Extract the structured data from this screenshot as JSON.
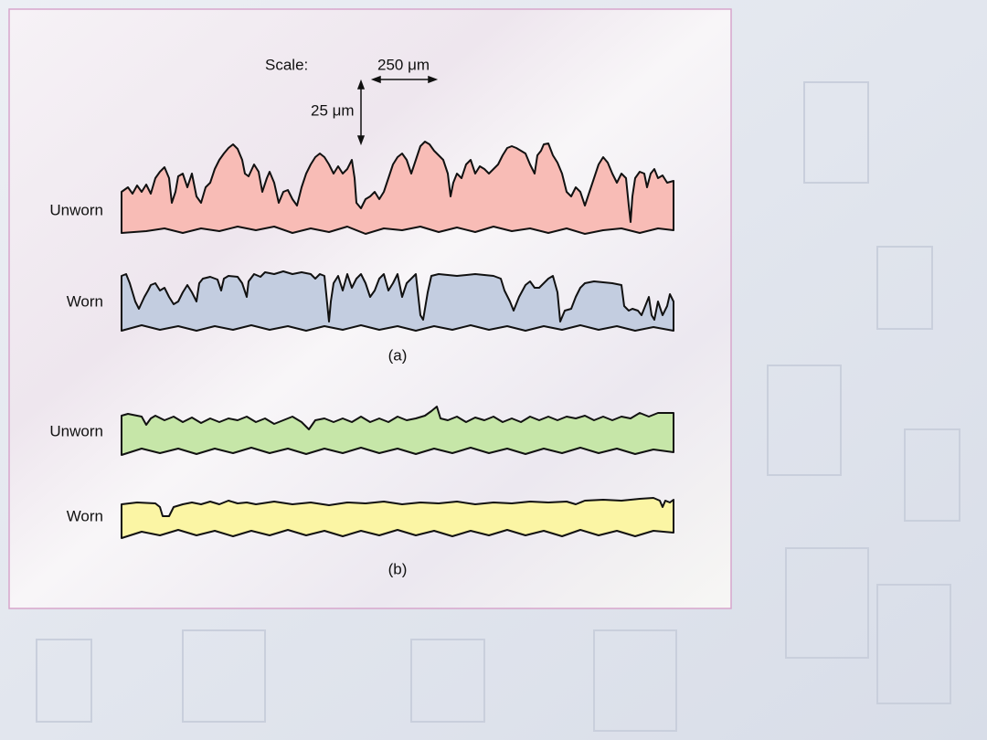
{
  "scale": {
    "label": "Scale:",
    "horizontal": "250 μm",
    "vertical": "25 μm"
  },
  "panel_a": {
    "profiles": [
      {
        "label": "Unworn"
      },
      {
        "label": "Worn"
      }
    ],
    "caption": "(a)"
  },
  "panel_b": {
    "profiles": [
      {
        "label": "Unworn"
      },
      {
        "label": "Worn"
      }
    ],
    "caption": "(b)"
  }
}
